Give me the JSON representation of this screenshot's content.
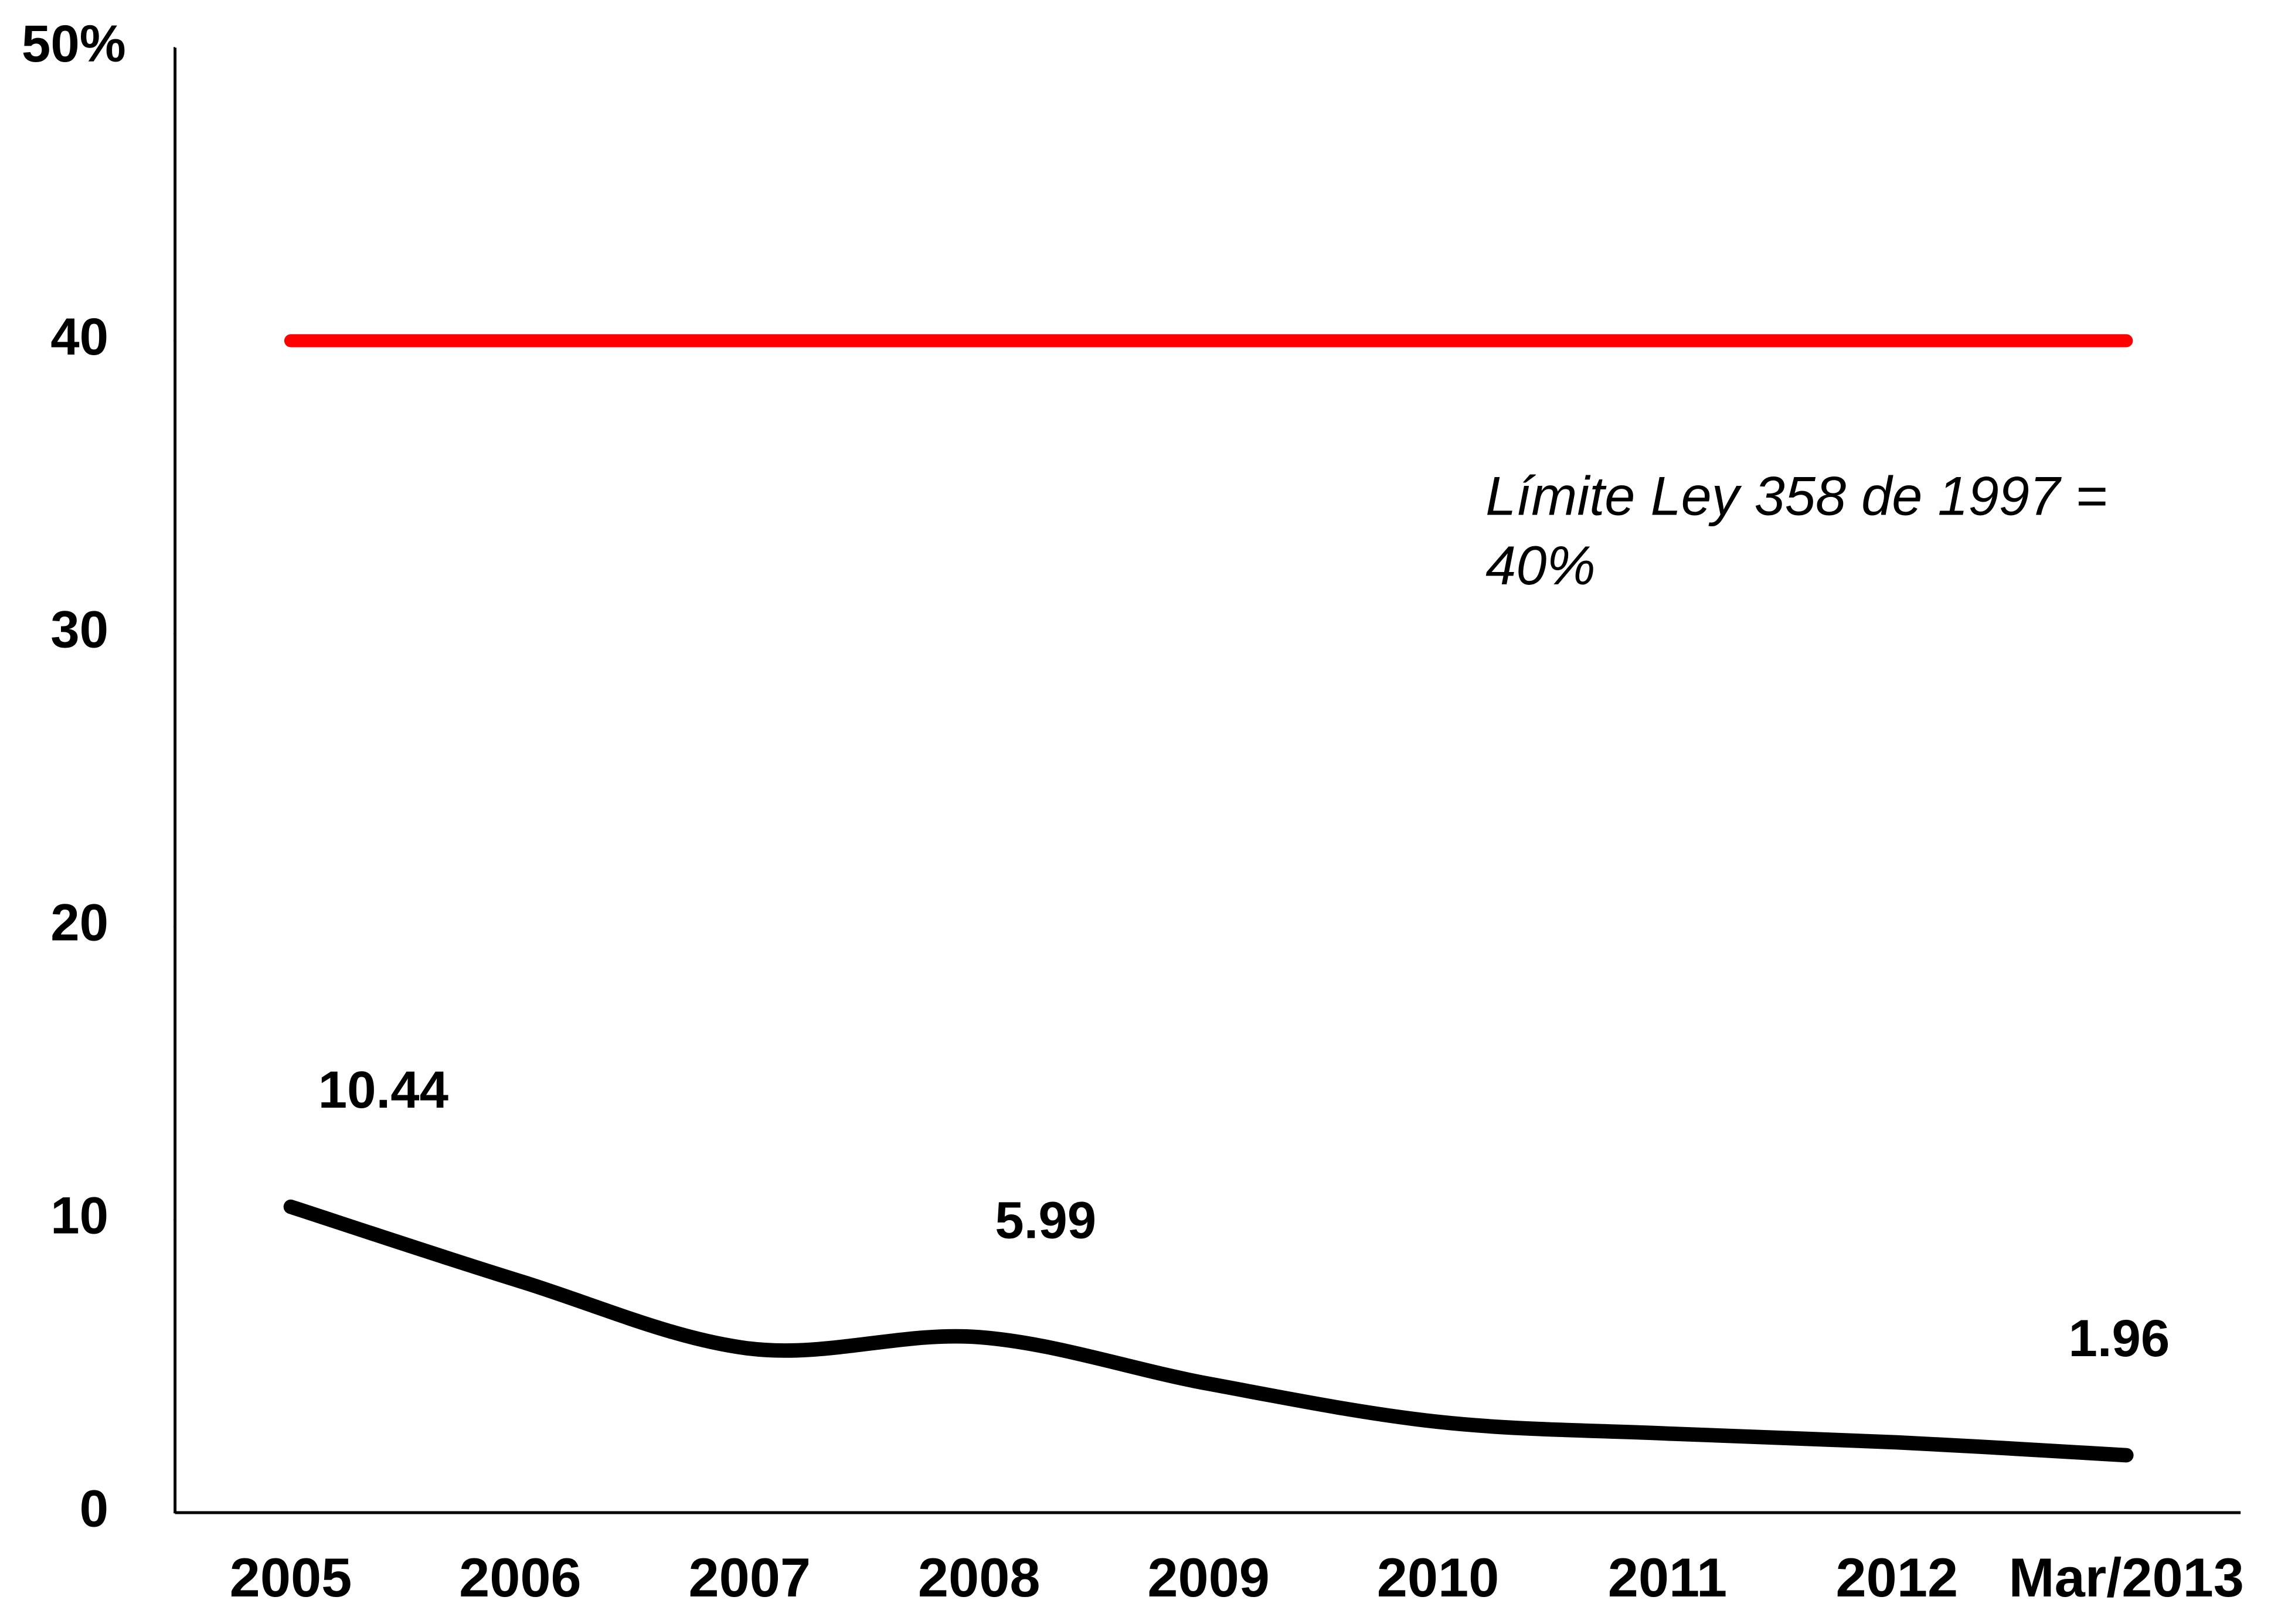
{
  "chart_data": {
    "type": "line",
    "categories": [
      "2005",
      "2006",
      "2007",
      "2008",
      "2009",
      "2010",
      "2011",
      "2012",
      "Mar/2013"
    ],
    "series": [
      {
        "color": "#ff0000",
        "values": [
          40,
          40,
          40,
          40,
          40,
          40,
          40,
          40,
          40
        ]
      },
      {
        "color": "#000000",
        "values": [
          10.44,
          7.9,
          5.6,
          5.99,
          4.4,
          3.1,
          2.7,
          2.4,
          1.96
        ],
        "value_labels": [
          "10.44",
          null,
          null,
          "5.99",
          null,
          null,
          null,
          null,
          "1.96"
        ]
      }
    ],
    "annotation": [
      "Límite Ley 358 de 1997 =",
      "40%"
    ],
    "ylim": [
      0,
      50
    ],
    "yticks": [
      0,
      10,
      20,
      30,
      40,
      {
        "value": 50,
        "label": "50%"
      }
    ],
    "grid": false
  }
}
